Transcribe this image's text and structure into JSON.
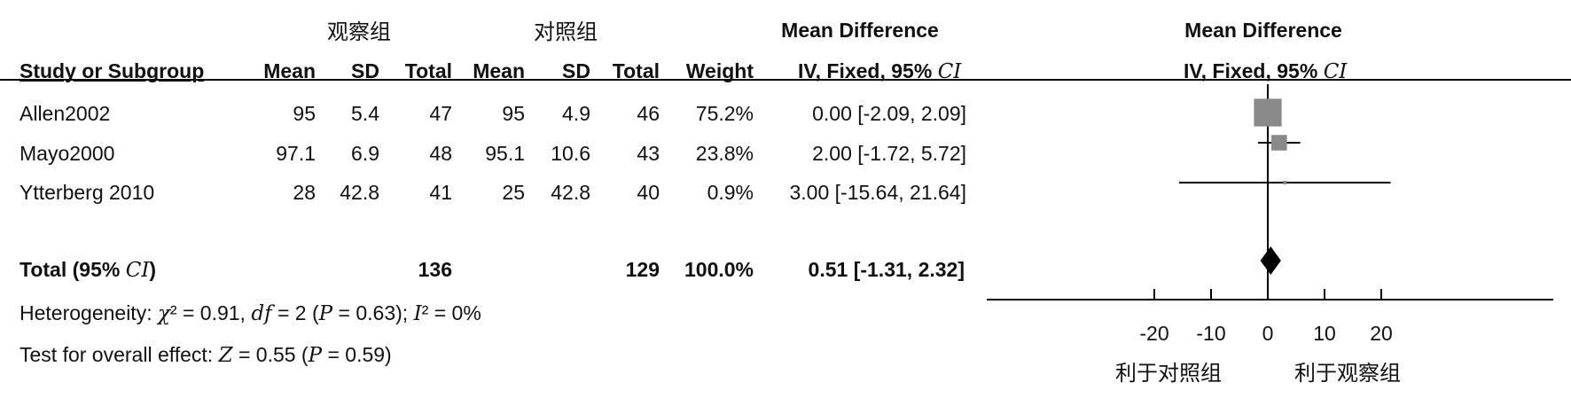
{
  "groups": {
    "exp": "观察组",
    "ctrl": "对照组"
  },
  "md_title_left": "Mean Difference",
  "md_title_right": "Mean Difference",
  "columns": {
    "study": "Study or Subgroup",
    "mean1": "Mean",
    "sd1": "SD",
    "total1": "Total",
    "mean2": "Mean",
    "sd2": "SD",
    "total2": "Total",
    "weight": "Weight",
    "ci_prefix": "IV, Fixed, 95% ",
    "ci_suffix": "CI"
  },
  "studies": [
    {
      "name": "Allen2002",
      "mean1": "95",
      "sd1": "5.4",
      "total1": "47",
      "mean2": "95",
      "sd2": "4.9",
      "total2": "46",
      "weight": "75.2%",
      "ci": "0.00 [-2.09, 2.09]"
    },
    {
      "name": "Mayo2000",
      "mean1": "97.1",
      "sd1": "6.9",
      "total1": "48",
      "mean2": "95.1",
      "sd2": "10.6",
      "total2": "43",
      "weight": "23.8%",
      "ci": "2.00 [-1.72, 5.72]"
    },
    {
      "name": "Ytterberg 2010",
      "mean1": "28",
      "sd1": "42.8",
      "total1": "41",
      "mean2": "25",
      "sd2": "42.8",
      "total2": "40",
      "weight": "0.9%",
      "ci": "3.00 [-15.64, 21.64]"
    }
  ],
  "total": {
    "label_prefix": "Total (95% ",
    "label_ci": "CI",
    "label_suffix": ")",
    "total1": "136",
    "total2": "129",
    "weight": "100.0%",
    "ci": "0.51 [-1.31, 2.32]"
  },
  "heterogeneity": {
    "label": "Heterogeneity: ",
    "chi": "χ",
    "chi_rest": "² = 0.91, ",
    "df": "df",
    "df_rest": " = 2 (",
    "p": "P",
    "p_rest": " = 0.63); ",
    "i2": "I",
    "i2_rest": "² = 0%"
  },
  "overall": {
    "label": "Test for overall effect: ",
    "z": "Z",
    "z_rest": " = 0.55 (",
    "p": "P",
    "p_rest": " = 0.59)"
  },
  "axis_labels": {
    "favours_ctrl": "利于对照组",
    "favours_exp": "利于观察组"
  },
  "chart_data": {
    "type": "forest",
    "measure": "Mean Difference, IV, Fixed, 95% CI",
    "xlim": [
      -20,
      20
    ],
    "ticks": [
      -20,
      -10,
      0,
      10,
      20
    ],
    "series": [
      {
        "name": "Allen2002",
        "estimate": 0.0,
        "lower": -2.09,
        "upper": 2.09,
        "weight": 75.2
      },
      {
        "name": "Mayo2000",
        "estimate": 2.0,
        "lower": -1.72,
        "upper": 5.72,
        "weight": 23.8
      },
      {
        "name": "Ytterberg 2010",
        "estimate": 3.0,
        "lower": -15.64,
        "upper": 21.64,
        "weight": 0.9
      }
    ],
    "pooled": {
      "estimate": 0.51,
      "lower": -1.31,
      "upper": 2.32
    },
    "colors": {
      "square": "#8a8a8a",
      "diamond": "#000000",
      "line": "#000000"
    }
  }
}
